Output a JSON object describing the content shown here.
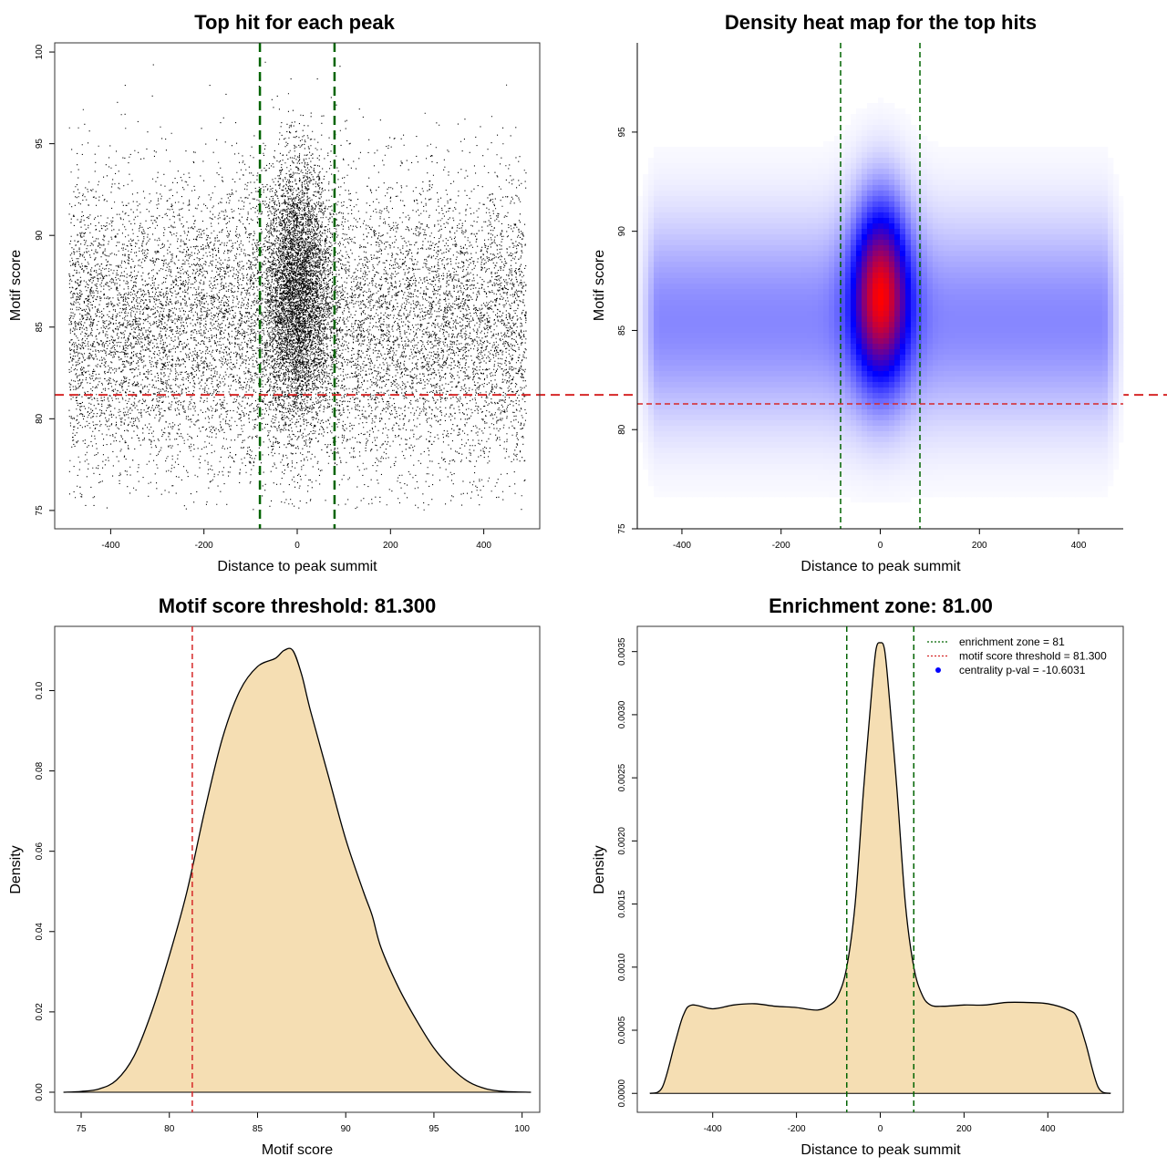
{
  "chart_data": [
    {
      "type": "scatter",
      "title": "Top hit for each peak",
      "xlabel": "Distance to peak summit",
      "ylabel": "Motif score",
      "xlim": [
        -520,
        520
      ],
      "ylim": [
        74,
        100.5
      ],
      "xticks": [
        -400,
        -200,
        0,
        200,
        400
      ],
      "yticks": [
        75,
        80,
        85,
        90,
        95,
        100
      ],
      "vlines": [
        -80,
        80
      ],
      "hline": 81.3,
      "colors": {
        "points": "#000000",
        "vlines": "#006400",
        "hline": "#d62728"
      },
      "point_distribution": {
        "x_range": [
          -490,
          490
        ],
        "y_range": [
          75,
          99.5
        ],
        "background_mean": 85,
        "background_sd": 4,
        "central_mean": 87,
        "central_sd": 3.5,
        "central_x_sd": 35
      }
    },
    {
      "type": "heatmap",
      "title": "Density heat map for the top hits",
      "xlabel": "Distance to peak summit",
      "ylabel": "Motif score",
      "xlim": [
        -490,
        490
      ],
      "ylim": [
        75,
        99.5
      ],
      "xticks": [
        -400,
        -200,
        0,
        200,
        400
      ],
      "yticks": [
        75,
        80,
        85,
        90,
        95
      ],
      "vlines": [
        -80,
        80
      ],
      "hline": 81.3,
      "colors": {
        "low": "#ffffff",
        "mid": "#0000ff",
        "high": "#ff0000",
        "vlines": "#006400",
        "hline": "#d62728"
      },
      "density": {
        "central_x": 0,
        "central_y": 87,
        "central_x_sd": 40,
        "central_y_sd": 3.2,
        "background_y": 85.5,
        "background_y_sd": 3.5,
        "background_x_range": [
          -490,
          490
        ]
      }
    },
    {
      "type": "area",
      "title": "Motif score threshold: 81.300",
      "xlabel": "Motif score",
      "ylabel": "Density",
      "xlim": [
        73.5,
        101
      ],
      "ylim": [
        -0.005,
        0.116
      ],
      "xticks": [
        75,
        80,
        85,
        90,
        95,
        100
      ],
      "yticks": [
        0.0,
        0.02,
        0.04,
        0.06,
        0.08,
        0.1
      ],
      "ytick_labels": [
        "0.00",
        "0.02",
        "0.04",
        "0.06",
        "0.08",
        "0.10"
      ],
      "vline": 81.3,
      "colors": {
        "fill": "#f5deb3",
        "line": "#000000",
        "vline": "#d62728"
      },
      "x": [
        74,
        75,
        76,
        77,
        78,
        79,
        80,
        81,
        82,
        83,
        84,
        85,
        86,
        86.5,
        87,
        87.5,
        88,
        89,
        90,
        91,
        91.5,
        92,
        93,
        94,
        95,
        96,
        97,
        98,
        99,
        100.5
      ],
      "values": [
        0.0,
        0.0002,
        0.0008,
        0.003,
        0.009,
        0.02,
        0.034,
        0.05,
        0.07,
        0.088,
        0.1,
        0.106,
        0.108,
        0.11,
        0.11,
        0.104,
        0.095,
        0.079,
        0.063,
        0.05,
        0.044,
        0.036,
        0.026,
        0.018,
        0.011,
        0.006,
        0.0025,
        0.0008,
        0.0002,
        0.0
      ]
    },
    {
      "type": "area",
      "title": "Enrichment zone: 81.00",
      "xlabel": "Distance to peak summit",
      "ylabel": "Density",
      "xlim": [
        -580,
        580
      ],
      "ylim": [
        -0.00015,
        0.0037
      ],
      "xticks": [
        -400,
        -200,
        0,
        200,
        400
      ],
      "yticks": [
        0.0,
        0.0005,
        0.001,
        0.0015,
        0.002,
        0.0025,
        0.003,
        0.0035
      ],
      "ytick_labels": [
        "0.0000",
        "0.0005",
        "0.0010",
        "0.0015",
        "0.0020",
        "0.0025",
        "0.0030",
        "0.0035"
      ],
      "vlines": [
        -80,
        80
      ],
      "colors": {
        "fill": "#f5deb3",
        "line": "#000000",
        "vlines": "#006400",
        "legend_zone": "#006400",
        "legend_threshold": "#d62728",
        "legend_pval": "#0000ff"
      },
      "x": [
        -550,
        -520,
        -490,
        -470,
        -450,
        -400,
        -350,
        -300,
        -250,
        -200,
        -150,
        -120,
        -100,
        -80,
        -60,
        -40,
        -20,
        -10,
        0,
        10,
        20,
        40,
        60,
        80,
        100,
        120,
        150,
        200,
        250,
        300,
        350,
        400,
        450,
        470,
        490,
        520,
        550
      ],
      "values": [
        0.0,
        5e-05,
        0.0004,
        0.00062,
        0.0007,
        0.00067,
        0.0007,
        0.00071,
        0.00069,
        0.00068,
        0.00066,
        0.0007,
        0.00078,
        0.001,
        0.0015,
        0.0024,
        0.0032,
        0.00352,
        0.00357,
        0.00352,
        0.0032,
        0.0024,
        0.0015,
        0.001,
        0.00078,
        0.0007,
        0.00069,
        0.0007,
        0.0007,
        0.00072,
        0.00072,
        0.00071,
        0.00066,
        0.0006,
        0.0004,
        5e-05,
        0.0
      ],
      "legend": [
        {
          "label": "enrichment zone = 81",
          "style": "dotted"
        },
        {
          "label": "motif score threshold = 81.300",
          "style": "dotted"
        },
        {
          "label": "centrality p-val = -10.6031",
          "style": "point"
        }
      ]
    }
  ]
}
